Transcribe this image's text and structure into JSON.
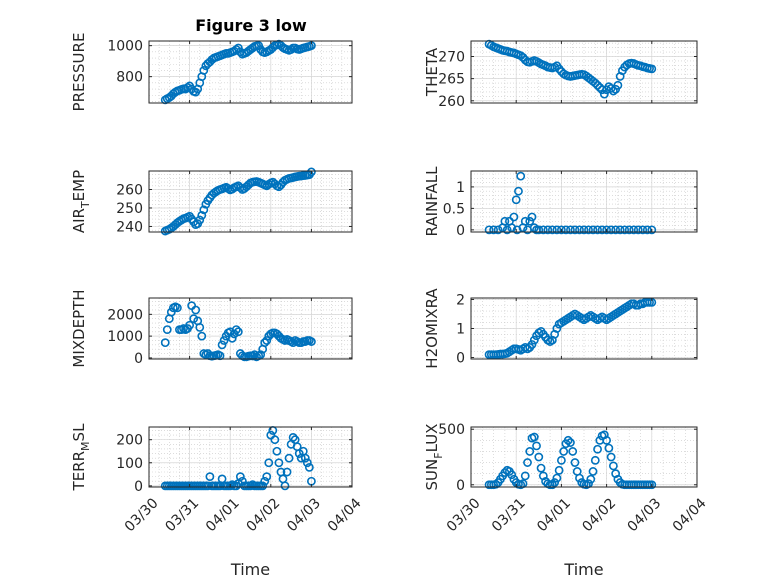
{
  "figure": {
    "title": "Figure 3 low"
  },
  "chart_data": [
    {
      "type": "scatter",
      "name": "pressure",
      "ylabel": "PRESSURE",
      "ylabel_sub": "",
      "ylabel_tail": "",
      "ylim": [
        630,
        1030
      ],
      "yticks": [
        800,
        1000
      ],
      "yticklabels": [
        "800",
        "1000"
      ],
      "xlim": [
        0,
        5
      ],
      "grid": true,
      "color": "#0072BD",
      "x": [
        0.4,
        0.45,
        0.5,
        0.55,
        0.6,
        0.65,
        0.7,
        0.75,
        0.8,
        0.85,
        0.9,
        0.95,
        1.0,
        1.05,
        1.1,
        1.15,
        1.2,
        1.25,
        1.3,
        1.35,
        1.4,
        1.45,
        1.5,
        1.55,
        1.6,
        1.65,
        1.7,
        1.75,
        1.8,
        1.85,
        1.9,
        1.95,
        2.0,
        2.05,
        2.1,
        2.15,
        2.2,
        2.25,
        2.3,
        2.35,
        2.4,
        2.45,
        2.5,
        2.55,
        2.6,
        2.65,
        2.7,
        2.75,
        2.8,
        2.85,
        2.9,
        2.95,
        3.0,
        3.05,
        3.1,
        3.15,
        3.2,
        3.25,
        3.3,
        3.35,
        3.4,
        3.45,
        3.5,
        3.55,
        3.6,
        3.65,
        3.7,
        3.75,
        3.8,
        3.85,
        3.9,
        3.95,
        4.0
      ],
      "y": [
        650,
        658,
        665,
        675,
        690,
        700,
        708,
        712,
        718,
        722,
        720,
        730,
        740,
        720,
        705,
        700,
        720,
        760,
        800,
        840,
        870,
        885,
        895,
        910,
        920,
        925,
        930,
        935,
        940,
        945,
        950,
        950,
        955,
        960,
        965,
        975,
        985,
        960,
        945,
        950,
        955,
        965,
        975,
        985,
        995,
        998,
        1000,
        975,
        960,
        955,
        960,
        968,
        975,
        988,
        1000,
        1005,
        1010,
        1000,
        988,
        980,
        975,
        970,
        975,
        985,
        985,
        978,
        975,
        980,
        985,
        988,
        992,
        995,
        1000
      ]
    },
    {
      "type": "scatter",
      "name": "theta",
      "ylabel": "THETA",
      "ylabel_sub": "",
      "ylabel_tail": "",
      "ylim": [
        259.5,
        273.5
      ],
      "yticks": [
        260,
        265,
        270
      ],
      "yticklabels": [
        "260",
        "265",
        "270"
      ],
      "xlim": [
        0,
        5
      ],
      "grid": true,
      "color": "#0072BD",
      "x": [
        0.4,
        0.45,
        0.5,
        0.55,
        0.6,
        0.65,
        0.7,
        0.75,
        0.8,
        0.85,
        0.9,
        0.95,
        1.0,
        1.05,
        1.1,
        1.15,
        1.2,
        1.25,
        1.3,
        1.35,
        1.4,
        1.45,
        1.5,
        1.55,
        1.6,
        1.65,
        1.7,
        1.75,
        1.8,
        1.85,
        1.9,
        1.95,
        2.0,
        2.05,
        2.1,
        2.15,
        2.2,
        2.25,
        2.3,
        2.35,
        2.4,
        2.45,
        2.5,
        2.55,
        2.6,
        2.65,
        2.7,
        2.75,
        2.8,
        2.85,
        2.9,
        2.95,
        3.0,
        3.05,
        3.1,
        3.15,
        3.2,
        3.25,
        3.3,
        3.35,
        3.4,
        3.45,
        3.5,
        3.55,
        3.6,
        3.65,
        3.7,
        3.75,
        3.8,
        3.85,
        3.9,
        3.95,
        4.0
      ],
      "y": [
        272.8,
        272.5,
        272.2,
        272.0,
        271.8,
        271.6,
        271.4,
        271.3,
        271.2,
        271.0,
        270.9,
        270.8,
        270.6,
        270.4,
        270.2,
        269.8,
        269.2,
        268.8,
        268.7,
        268.9,
        269.1,
        268.9,
        268.6,
        268.3,
        268.1,
        267.9,
        267.6,
        267.5,
        267.4,
        267.6,
        267.9,
        267.2,
        266.6,
        266.1,
        265.8,
        265.6,
        265.5,
        265.6,
        265.7,
        265.8,
        265.9,
        266.0,
        265.9,
        265.6,
        265.2,
        264.8,
        264.4,
        264.0,
        263.5,
        263.0,
        262.5,
        261.5,
        262.5,
        263.2,
        262.8,
        262.2,
        262.6,
        263.5,
        265.5,
        266.8,
        267.6,
        268.1,
        268.4,
        268.5,
        268.4,
        268.2,
        268.0,
        267.9,
        267.7,
        267.6,
        267.4,
        267.3,
        267.2
      ]
    },
    {
      "type": "scatter",
      "name": "air-temp",
      "ylabel": "AIR",
      "ylabel_sub": "T",
      "ylabel_tail": "EMP",
      "ylim": [
        237,
        270
      ],
      "yticks": [
        240,
        250,
        260
      ],
      "yticklabels": [
        "240",
        "250",
        "260"
      ],
      "xlim": [
        0,
        5
      ],
      "grid": true,
      "color": "#0072BD",
      "x": [
        0.4,
        0.45,
        0.5,
        0.55,
        0.6,
        0.65,
        0.7,
        0.75,
        0.8,
        0.85,
        0.9,
        0.95,
        1.0,
        1.05,
        1.1,
        1.15,
        1.2,
        1.25,
        1.3,
        1.35,
        1.4,
        1.45,
        1.5,
        1.55,
        1.6,
        1.65,
        1.7,
        1.75,
        1.8,
        1.85,
        1.9,
        1.95,
        2.0,
        2.05,
        2.1,
        2.15,
        2.2,
        2.25,
        2.3,
        2.35,
        2.4,
        2.45,
        2.5,
        2.55,
        2.6,
        2.65,
        2.7,
        2.75,
        2.8,
        2.85,
        2.9,
        2.95,
        3.0,
        3.05,
        3.1,
        3.15,
        3.2,
        3.25,
        3.3,
        3.35,
        3.4,
        3.45,
        3.5,
        3.55,
        3.6,
        3.65,
        3.7,
        3.75,
        3.8,
        3.85,
        3.9,
        3.95,
        4.0
      ],
      "y": [
        237.5,
        238.0,
        238.5,
        239.2,
        240.0,
        241.0,
        242.0,
        242.8,
        243.5,
        244.2,
        244.5,
        245.0,
        245.5,
        244.0,
        242.5,
        241.0,
        241.5,
        243.5,
        246.0,
        249.0,
        252.0,
        254.0,
        255.5,
        257.0,
        258.0,
        258.8,
        259.5,
        260.0,
        260.3,
        260.8,
        261.2,
        260.5,
        259.8,
        260.2,
        261.0,
        261.5,
        262.0,
        261.0,
        260.0,
        260.5,
        261.5,
        262.5,
        263.5,
        264.0,
        264.2,
        264.3,
        264.0,
        263.5,
        263.0,
        262.5,
        262.0,
        262.8,
        263.5,
        264.0,
        263.0,
        262.0,
        261.5,
        262.5,
        264.0,
        265.0,
        265.5,
        266.0,
        266.2,
        266.5,
        266.8,
        267.0,
        267.2,
        267.3,
        267.5,
        267.6,
        267.8,
        268.0,
        269.5
      ]
    },
    {
      "type": "scatter",
      "name": "rainfall",
      "ylabel": "RAINFALL",
      "ylabel_sub": "",
      "ylabel_tail": "",
      "ylim": [
        -0.05,
        1.37
      ],
      "yticks": [
        0,
        0.5,
        1
      ],
      "yticklabels": [
        "0",
        "0.5",
        "1"
      ],
      "xlim": [
        0,
        5
      ],
      "grid": true,
      "color": "#0072BD",
      "x": [
        0.4,
        0.5,
        0.6,
        0.7,
        0.75,
        0.8,
        0.85,
        0.9,
        0.95,
        1.0,
        1.02,
        1.05,
        1.1,
        1.15,
        1.2,
        1.25,
        1.3,
        1.35,
        1.4,
        1.45,
        1.5,
        1.6,
        1.7,
        1.8,
        1.9,
        2.0,
        2.1,
        2.2,
        2.3,
        2.4,
        2.5,
        2.6,
        2.7,
        2.8,
        2.9,
        3.0,
        3.1,
        3.2,
        3.3,
        3.4,
        3.5,
        3.6,
        3.7,
        3.8,
        3.9,
        4.0
      ],
      "y": [
        0,
        0,
        0,
        0.05,
        0.2,
        0,
        0.2,
        0.05,
        0.3,
        0.7,
        0,
        0.9,
        1.25,
        0.05,
        0.2,
        0,
        0.2,
        0.3,
        0.05,
        0,
        0,
        0,
        0,
        0,
        0,
        0,
        0,
        0,
        0,
        0,
        0,
        0,
        0,
        0,
        0,
        0,
        0,
        0,
        0,
        0,
        0,
        0,
        0,
        0,
        0,
        0
      ]
    },
    {
      "type": "scatter",
      "name": "mixdepth",
      "ylabel": "MIXDEPTH",
      "ylabel_sub": "",
      "ylabel_tail": "",
      "ylim": [
        -50,
        2750
      ],
      "yticks": [
        0,
        1000,
        2000
      ],
      "yticklabels": [
        "0",
        "1000",
        "2000"
      ],
      "xlim": [
        0,
        5
      ],
      "grid": true,
      "color": "#0072BD",
      "x": [
        0.4,
        0.45,
        0.5,
        0.55,
        0.6,
        0.65,
        0.7,
        0.75,
        0.8,
        0.85,
        0.9,
        0.95,
        1.0,
        1.05,
        1.1,
        1.15,
        1.2,
        1.25,
        1.3,
        1.35,
        1.4,
        1.45,
        1.5,
        1.55,
        1.6,
        1.65,
        1.7,
        1.75,
        1.8,
        1.85,
        1.9,
        1.95,
        2.0,
        2.05,
        2.1,
        2.15,
        2.2,
        2.25,
        2.3,
        2.35,
        2.4,
        2.45,
        2.5,
        2.55,
        2.6,
        2.65,
        2.7,
        2.75,
        2.8,
        2.85,
        2.9,
        2.95,
        3.0,
        3.05,
        3.1,
        3.15,
        3.2,
        3.25,
        3.3,
        3.35,
        3.4,
        3.45,
        3.5,
        3.55,
        3.6,
        3.65,
        3.7,
        3.75,
        3.8,
        3.85,
        3.9,
        3.95,
        4.0
      ],
      "y": [
        700,
        1300,
        1800,
        2100,
        2300,
        2350,
        2300,
        1300,
        1300,
        1350,
        1300,
        1350,
        1500,
        2400,
        1800,
        2200,
        1700,
        1400,
        1000,
        200,
        150,
        200,
        100,
        80,
        100,
        120,
        150,
        100,
        600,
        800,
        1000,
        1150,
        1200,
        900,
        1100,
        1300,
        1200,
        200,
        100,
        50,
        50,
        80,
        100,
        90,
        150,
        50,
        100,
        150,
        400,
        700,
        800,
        1000,
        1100,
        1150,
        1150,
        1100,
        1000,
        900,
        850,
        800,
        850,
        800,
        750,
        700,
        800,
        750,
        700,
        700,
        750,
        750,
        800,
        800,
        750
      ]
    },
    {
      "type": "scatter",
      "name": "h2o-mix-ratio",
      "ylabel": "H2OMIXRA",
      "ylabel_sub": "",
      "ylabel_tail": "",
      "ylim": [
        -0.05,
        2.05
      ],
      "yticks": [
        0,
        1,
        2
      ],
      "yticklabels": [
        "0",
        "1",
        "2"
      ],
      "xlim": [
        0,
        5
      ],
      "grid": true,
      "color": "#0072BD",
      "x": [
        0.4,
        0.45,
        0.5,
        0.55,
        0.6,
        0.65,
        0.7,
        0.75,
        0.8,
        0.85,
        0.9,
        0.95,
        1.0,
        1.05,
        1.1,
        1.15,
        1.2,
        1.25,
        1.3,
        1.35,
        1.4,
        1.45,
        1.5,
        1.55,
        1.6,
        1.65,
        1.7,
        1.75,
        1.8,
        1.85,
        1.9,
        1.95,
        2.0,
        2.05,
        2.1,
        2.15,
        2.2,
        2.25,
        2.3,
        2.35,
        2.4,
        2.45,
        2.5,
        2.55,
        2.6,
        2.65,
        2.7,
        2.75,
        2.8,
        2.85,
        2.9,
        2.95,
        3.0,
        3.05,
        3.1,
        3.15,
        3.2,
        3.25,
        3.3,
        3.35,
        3.4,
        3.45,
        3.5,
        3.55,
        3.6,
        3.65,
        3.7,
        3.75,
        3.8,
        3.85,
        3.9,
        3.95,
        4.0
      ],
      "y": [
        0.1,
        0.1,
        0.1,
        0.1,
        0.11,
        0.12,
        0.12,
        0.13,
        0.15,
        0.2,
        0.25,
        0.3,
        0.3,
        0.28,
        0.25,
        0.3,
        0.35,
        0.3,
        0.35,
        0.45,
        0.6,
        0.75,
        0.85,
        0.9,
        0.8,
        0.7,
        0.6,
        0.55,
        0.6,
        0.8,
        1.0,
        1.15,
        1.2,
        1.25,
        1.3,
        1.35,
        1.4,
        1.45,
        1.5,
        1.45,
        1.4,
        1.35,
        1.3,
        1.35,
        1.4,
        1.45,
        1.4,
        1.35,
        1.3,
        1.35,
        1.4,
        1.35,
        1.3,
        1.35,
        1.4,
        1.45,
        1.5,
        1.55,
        1.6,
        1.65,
        1.7,
        1.75,
        1.8,
        1.85,
        1.85,
        1.8,
        1.8,
        1.85,
        1.85,
        1.9,
        1.9,
        1.9,
        1.9
      ]
    },
    {
      "type": "scatter",
      "name": "terrain-msl",
      "ylabel": "TERR",
      "ylabel_sub": "M",
      "ylabel_tail": "SL",
      "ylim": [
        -5,
        255
      ],
      "yticks": [
        0,
        100,
        200
      ],
      "yticklabels": [
        "0",
        "100",
        "200"
      ],
      "xlim": [
        0,
        5
      ],
      "grid": true,
      "color": "#0072BD",
      "xlabel": "Time",
      "xticks": [
        0,
        1,
        2,
        3,
        4,
        5
      ],
      "xticklabels": [
        "03/30",
        "03/31",
        "04/01",
        "04/02",
        "04/03",
        "04/04"
      ],
      "x": [
        0.4,
        0.45,
        0.5,
        0.55,
        0.6,
        0.65,
        0.7,
        0.75,
        0.8,
        0.85,
        0.9,
        0.95,
        1.0,
        1.05,
        1.1,
        1.15,
        1.2,
        1.25,
        1.3,
        1.35,
        1.4,
        1.45,
        1.5,
        1.55,
        1.6,
        1.65,
        1.7,
        1.75,
        1.8,
        1.85,
        1.9,
        1.95,
        2.0,
        2.05,
        2.1,
        2.15,
        2.2,
        2.25,
        2.3,
        2.35,
        2.4,
        2.45,
        2.5,
        2.55,
        2.6,
        2.65,
        2.7,
        2.75,
        2.8,
        2.85,
        2.9,
        2.95,
        3.0,
        3.05,
        3.1,
        3.15,
        3.2,
        3.25,
        3.3,
        3.35,
        3.4,
        3.45,
        3.5,
        3.55,
        3.6,
        3.65,
        3.7,
        3.75,
        3.8,
        3.85,
        3.9,
        3.95,
        4.0
      ],
      "y": [
        0,
        0,
        0,
        0,
        0,
        0,
        0,
        0,
        0,
        0,
        0,
        0,
        0,
        0,
        0,
        0,
        0,
        0,
        0,
        0,
        0,
        0,
        40,
        0,
        0,
        0,
        0,
        0,
        30,
        0,
        0,
        0,
        0,
        5,
        0,
        0,
        10,
        40,
        20,
        0,
        0,
        0,
        0,
        5,
        0,
        0,
        0,
        0,
        0,
        20,
        40,
        100,
        220,
        240,
        200,
        150,
        100,
        60,
        30,
        0,
        60,
        120,
        180,
        210,
        200,
        170,
        140,
        120,
        150,
        120,
        100,
        80,
        20
      ]
    },
    {
      "type": "scatter",
      "name": "sun-flux",
      "ylabel": "SUN",
      "ylabel_sub": "F",
      "ylabel_tail": "LUX",
      "ylim": [
        -20,
        520
      ],
      "yticks": [
        0,
        500
      ],
      "yticklabels": [
        "0",
        "500"
      ],
      "xlim": [
        0,
        5
      ],
      "grid": true,
      "color": "#0072BD",
      "xlabel": "Time",
      "xticks": [
        0,
        1,
        2,
        3,
        4,
        5
      ],
      "xticklabels": [
        "03/30",
        "03/31",
        "04/01",
        "04/02",
        "04/03",
        "04/04"
      ],
      "x": [
        0.4,
        0.45,
        0.5,
        0.55,
        0.6,
        0.65,
        0.7,
        0.75,
        0.8,
        0.85,
        0.9,
        0.95,
        1.0,
        1.05,
        1.1,
        1.15,
        1.2,
        1.25,
        1.3,
        1.35,
        1.4,
        1.45,
        1.5,
        1.55,
        1.6,
        1.65,
        1.7,
        1.75,
        1.8,
        1.85,
        1.9,
        1.95,
        2.0,
        2.05,
        2.1,
        2.15,
        2.2,
        2.25,
        2.3,
        2.35,
        2.4,
        2.45,
        2.5,
        2.55,
        2.6,
        2.65,
        2.7,
        2.75,
        2.8,
        2.85,
        2.9,
        2.95,
        3.0,
        3.05,
        3.1,
        3.15,
        3.2,
        3.25,
        3.3,
        3.35,
        3.4,
        3.45,
        3.5,
        3.55,
        3.6,
        3.65,
        3.7,
        3.75,
        3.8,
        3.85,
        3.9,
        3.95,
        4.0
      ],
      "y": [
        0,
        0,
        0,
        5,
        20,
        50,
        80,
        110,
        130,
        120,
        90,
        50,
        20,
        5,
        0,
        10,
        80,
        200,
        300,
        420,
        430,
        350,
        250,
        150,
        80,
        30,
        10,
        0,
        0,
        20,
        60,
        130,
        220,
        300,
        370,
        400,
        380,
        300,
        200,
        120,
        60,
        20,
        5,
        0,
        10,
        50,
        120,
        220,
        320,
        400,
        440,
        450,
        400,
        330,
        250,
        170,
        100,
        50,
        20,
        5,
        0,
        0,
        0,
        0,
        0,
        0,
        0,
        0,
        0,
        0,
        0,
        0,
        0
      ]
    }
  ]
}
